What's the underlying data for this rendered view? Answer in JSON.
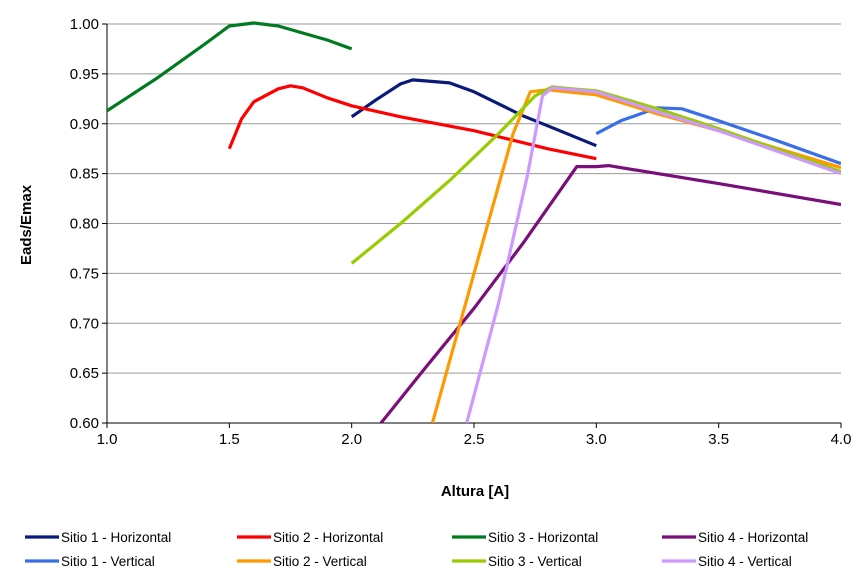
{
  "chart_data": {
    "type": "line",
    "title": "",
    "xlabel": "Altura [A]",
    "ylabel": "Eads/Emax",
    "xlim": [
      1.0,
      4.0
    ],
    "ylim": [
      0.6,
      1.0
    ],
    "x_ticks": [
      "1.0",
      "1.5",
      "2.0",
      "2.5",
      "3.0",
      "3.5",
      "4.0"
    ],
    "y_ticks": [
      "0.60",
      "0.65",
      "0.70",
      "0.75",
      "0.80",
      "0.85",
      "0.90",
      "0.95",
      "1.00"
    ],
    "grid": "horizontal",
    "legend_position": "bottom",
    "series": [
      {
        "name": "Sitio 1 - Horizontal",
        "color": "#0a1a7a",
        "points": [
          [
            2.0,
            0.907
          ],
          [
            2.1,
            0.924
          ],
          [
            2.2,
            0.94
          ],
          [
            2.25,
            0.944
          ],
          [
            2.3,
            0.943
          ],
          [
            2.4,
            0.941
          ],
          [
            2.5,
            0.932
          ],
          [
            2.6,
            0.92
          ],
          [
            2.7,
            0.908
          ],
          [
            2.8,
            0.898
          ],
          [
            2.9,
            0.888
          ],
          [
            3.0,
            0.878
          ]
        ]
      },
      {
        "name": "Sitio 2 - Horizontal",
        "color": "#ff0000",
        "points": [
          [
            1.5,
            0.875
          ],
          [
            1.55,
            0.905
          ],
          [
            1.6,
            0.922
          ],
          [
            1.7,
            0.935
          ],
          [
            1.75,
            0.938
          ],
          [
            1.8,
            0.936
          ],
          [
            1.9,
            0.926
          ],
          [
            2.0,
            0.918
          ],
          [
            2.2,
            0.907
          ],
          [
            2.5,
            0.893
          ],
          [
            2.8,
            0.875
          ],
          [
            3.0,
            0.865
          ]
        ]
      },
      {
        "name": "Sitio 3 - Horizontal",
        "color": "#007a1e",
        "points": [
          [
            1.0,
            0.913
          ],
          [
            1.2,
            0.945
          ],
          [
            1.4,
            0.98
          ],
          [
            1.5,
            0.998
          ],
          [
            1.6,
            1.001
          ],
          [
            1.7,
            0.998
          ],
          [
            1.8,
            0.991
          ],
          [
            1.9,
            0.984
          ],
          [
            2.0,
            0.975
          ]
        ]
      },
      {
        "name": "Sitio 4 - Horizontal",
        "color": "#7a0f7a",
        "points": [
          [
            2.12,
            0.6
          ],
          [
            2.3,
            0.655
          ],
          [
            2.5,
            0.715
          ],
          [
            2.7,
            0.78
          ],
          [
            2.92,
            0.857
          ],
          [
            3.0,
            0.857
          ],
          [
            3.05,
            0.858
          ],
          [
            3.5,
            0.84
          ],
          [
            4.0,
            0.819
          ]
        ]
      },
      {
        "name": "Sitio 1 - Vertical",
        "color": "#3a6fe8",
        "points": [
          [
            3.0,
            0.89
          ],
          [
            3.1,
            0.903
          ],
          [
            3.25,
            0.916
          ],
          [
            3.35,
            0.915
          ],
          [
            3.5,
            0.903
          ],
          [
            3.75,
            0.882
          ],
          [
            4.0,
            0.86
          ]
        ]
      },
      {
        "name": "Sitio 2 - Vertical",
        "color": "#ff9900",
        "points": [
          [
            2.33,
            0.6
          ],
          [
            2.5,
            0.75
          ],
          [
            2.66,
            0.89
          ],
          [
            2.73,
            0.932
          ],
          [
            2.8,
            0.934
          ],
          [
            3.0,
            0.929
          ],
          [
            3.25,
            0.91
          ],
          [
            3.5,
            0.893
          ],
          [
            4.0,
            0.856
          ]
        ]
      },
      {
        "name": "Sitio 3 - Vertical",
        "color": "#99cc00",
        "points": [
          [
            2.0,
            0.76
          ],
          [
            2.2,
            0.8
          ],
          [
            2.4,
            0.843
          ],
          [
            2.6,
            0.89
          ],
          [
            2.75,
            0.928
          ],
          [
            2.82,
            0.937
          ],
          [
            2.9,
            0.935
          ],
          [
            3.0,
            0.933
          ],
          [
            3.25,
            0.915
          ],
          [
            3.5,
            0.895
          ],
          [
            4.0,
            0.852
          ]
        ]
      },
      {
        "name": "Sitio 4 - Vertical",
        "color": "#cc99ff",
        "points": [
          [
            2.47,
            0.6
          ],
          [
            2.6,
            0.72
          ],
          [
            2.72,
            0.85
          ],
          [
            2.78,
            0.928
          ],
          [
            2.82,
            0.936
          ],
          [
            3.0,
            0.932
          ],
          [
            3.25,
            0.912
          ],
          [
            3.5,
            0.893
          ],
          [
            4.0,
            0.85
          ]
        ]
      }
    ]
  }
}
